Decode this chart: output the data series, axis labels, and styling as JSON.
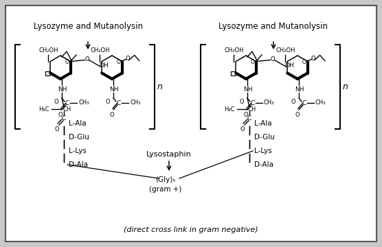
{
  "figsize": [
    5.56,
    3.6
  ],
  "dpi": 100,
  "bg_outer": "#c8c8c8",
  "bg_inner": "#ffffff",
  "border_color": "#555555",
  "left_label": "Lysozyme and Mutanolysin",
  "right_label": "Lysozyme and Mutanolysin",
  "bottom_label": "(direct cross link in gram negative)",
  "left_peptides": [
    "L-Ala",
    "D-Glu",
    "L-Lys",
    "D-Ala"
  ],
  "right_peptides": [
    "L-Ala",
    "D-Glu",
    "L-Lys",
    "D-Ala"
  ],
  "lysostaphin_label": "Lysostaphin",
  "gly_label": "(Gly)₅",
  "gram_label": "(gram +)"
}
